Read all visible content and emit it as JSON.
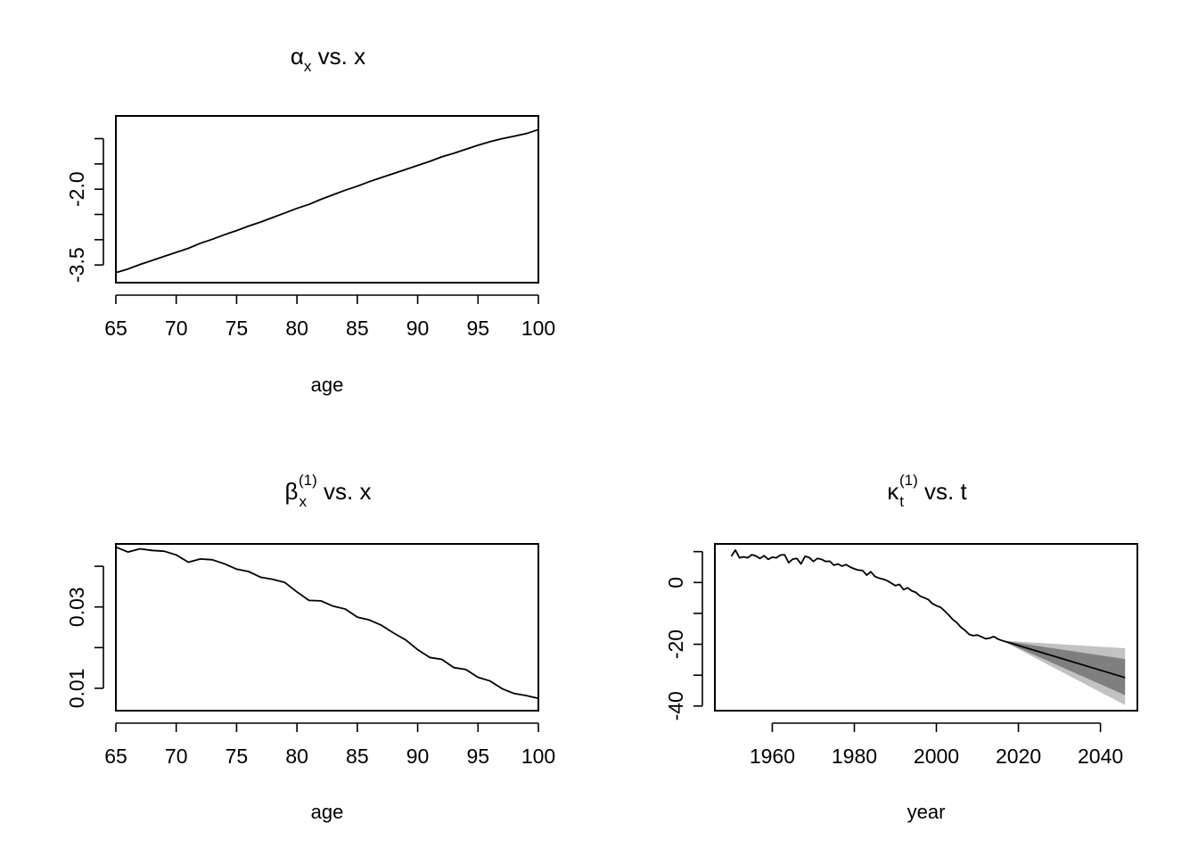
{
  "chart_data": [
    {
      "id": "alpha",
      "type": "line",
      "title": {
        "symbol": "α",
        "sub": "x",
        "sup": "",
        "rest": " vs. x"
      },
      "xlabel": "age",
      "ylabel": "",
      "xlim": [
        65,
        100
      ],
      "ylim": [
        -3.85,
        -0.55
      ],
      "xticks": [
        65,
        70,
        75,
        80,
        85,
        90,
        95,
        100
      ],
      "xtick_labels": [
        "65",
        "70",
        "75",
        "80",
        "85",
        "90",
        "95",
        "100"
      ],
      "yticks": [
        -3.5,
        -3.0,
        -2.5,
        -2.0,
        -1.5,
        -1.0
      ],
      "ytick_labels": [
        "-3.5",
        "",
        "",
        "-2.0",
        "",
        ""
      ],
      "x": [
        65,
        66,
        67,
        68,
        69,
        70,
        71,
        72,
        73,
        74,
        75,
        76,
        77,
        78,
        79,
        80,
        81,
        82,
        83,
        84,
        85,
        86,
        87,
        88,
        89,
        90,
        91,
        92,
        93,
        94,
        95,
        96,
        97,
        98,
        99,
        100
      ],
      "values": [
        -3.65,
        -3.58,
        -3.49,
        -3.41,
        -3.33,
        -3.25,
        -3.17,
        -3.07,
        -2.99,
        -2.9,
        -2.82,
        -2.73,
        -2.65,
        -2.56,
        -2.47,
        -2.38,
        -2.3,
        -2.2,
        -2.11,
        -2.02,
        -1.94,
        -1.85,
        -1.77,
        -1.69,
        -1.61,
        -1.53,
        -1.45,
        -1.36,
        -1.29,
        -1.21,
        -1.13,
        -1.06,
        -1.0,
        -0.95,
        -0.9,
        -0.82
      ],
      "grid": false,
      "legend": "none"
    },
    {
      "id": "beta",
      "type": "line",
      "title": {
        "symbol": "β",
        "sub": "x",
        "sup": "(1)",
        "rest": " vs. x"
      },
      "xlabel": "age",
      "ylabel": "",
      "xlim": [
        65,
        100
      ],
      "ylim": [
        0.0045,
        0.0455
      ],
      "xticks": [
        65,
        70,
        75,
        80,
        85,
        90,
        95,
        100
      ],
      "xtick_labels": [
        "65",
        "70",
        "75",
        "80",
        "85",
        "90",
        "95",
        "100"
      ],
      "yticks": [
        0.01,
        0.02,
        0.03,
        0.04
      ],
      "ytick_labels": [
        "0.01",
        "",
        "0.03",
        ""
      ],
      "x": [
        65,
        66,
        67,
        68,
        69,
        70,
        71,
        72,
        73,
        74,
        75,
        76,
        77,
        78,
        79,
        80,
        81,
        82,
        83,
        84,
        85,
        86,
        87,
        88,
        89,
        90,
        91,
        92,
        93,
        94,
        95,
        96,
        97,
        98,
        99,
        100
      ],
      "values": [
        0.0447,
        0.0435,
        0.0443,
        0.0439,
        0.0437,
        0.0428,
        0.041,
        0.0418,
        0.0416,
        0.0406,
        0.0393,
        0.0387,
        0.0373,
        0.0368,
        0.036,
        0.0337,
        0.0316,
        0.0315,
        0.0302,
        0.0295,
        0.0275,
        0.0268,
        0.0255,
        0.0236,
        0.0219,
        0.0195,
        0.0176,
        0.0171,
        0.0151,
        0.0146,
        0.0127,
        0.0118,
        0.0099,
        0.0087,
        0.0082,
        0.0075
      ],
      "grid": false,
      "legend": "none"
    },
    {
      "id": "kappa",
      "type": "line",
      "title": {
        "symbol": "κ",
        "sub": "t",
        "sup": "(1)",
        "rest": " vs. t"
      },
      "xlabel": "year",
      "ylabel": "",
      "xlim": [
        1946,
        2049
      ],
      "ylim": [
        -41.5,
        12.5
      ],
      "xticks": [
        1960,
        1980,
        2000,
        2020,
        2040
      ],
      "xtick_labels": [
        "1960",
        "1980",
        "2000",
        "2020",
        "2040"
      ],
      "yticks": [
        10,
        0,
        -10,
        -20,
        -30,
        -40
      ],
      "ytick_labels": [
        "",
        "0",
        "",
        "-20",
        "",
        "-40"
      ],
      "x": [
        1950,
        1951,
        1952,
        1953,
        1954,
        1955,
        1956,
        1957,
        1958,
        1959,
        1960,
        1961,
        1962,
        1963,
        1964,
        1965,
        1966,
        1967,
        1968,
        1969,
        1970,
        1971,
        1972,
        1973,
        1974,
        1975,
        1976,
        1977,
        1978,
        1979,
        1980,
        1981,
        1982,
        1983,
        1984,
        1985,
        1986,
        1987,
        1988,
        1989,
        1990,
        1991,
        1992,
        1993,
        1994,
        1995,
        1996,
        1997,
        1998,
        1999,
        2000,
        2001,
        2002,
        2003,
        2004,
        2005,
        2006,
        2007,
        2008,
        2009,
        2010,
        2011,
        2012,
        2013,
        2014,
        2015,
        2016
      ],
      "values": [
        8.5,
        10.5,
        8.0,
        8.3,
        8.0,
        9.0,
        8.6,
        7.8,
        8.7,
        7.5,
        8.2,
        8.0,
        8.9,
        9.0,
        6.4,
        7.6,
        7.8,
        6.0,
        8.5,
        8.1,
        6.8,
        7.8,
        7.5,
        6.8,
        6.9,
        5.6,
        6.0,
        5.3,
        5.8,
        5.0,
        4.4,
        4.0,
        3.9,
        2.4,
        3.5,
        2.0,
        1.4,
        1.1,
        0.6,
        -0.2,
        -1.0,
        -0.6,
        -2.3,
        -1.7,
        -2.7,
        -3.2,
        -4.4,
        -4.9,
        -5.5,
        -6.8,
        -7.5,
        -8.0,
        -9.2,
        -10.5,
        -12.0,
        -13.0,
        -14.5,
        -15.5,
        -16.8,
        -17.2,
        -17.0,
        -17.6,
        -18.2,
        -18.0,
        -17.5,
        -18.3,
        -18.8
      ],
      "forecast": {
        "x": [
          2016,
          2046
        ],
        "mean": [
          -18.8,
          -30.8
        ],
        "band_inner_lower": [
          -18.8,
          -36.5
        ],
        "band_inner_upper": [
          -18.8,
          -24.8
        ],
        "band_outer_lower": [
          -18.8,
          -39.7
        ],
        "band_outer_upper": [
          -18.8,
          -21.3
        ],
        "band_inner_color": "#7f7f7f",
        "band_outer_color": "#c2c2c2"
      },
      "grid": false,
      "legend": "none"
    }
  ]
}
